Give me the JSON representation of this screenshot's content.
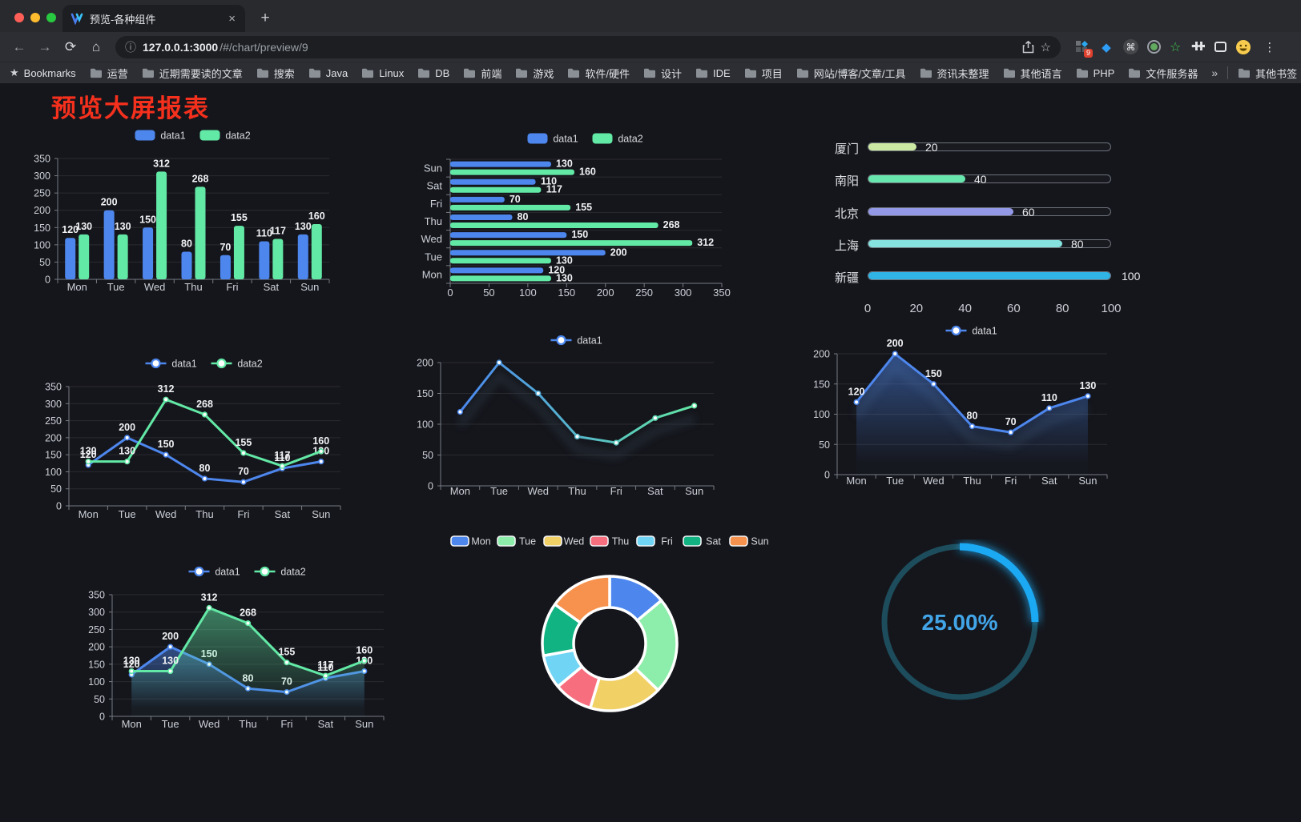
{
  "browser": {
    "tab": {
      "title": "预览-各种组件"
    },
    "url": {
      "host": "127.0.0.1:3000",
      "path": "/#/chart/preview/9"
    },
    "icons": {
      "back": "←",
      "forward": "→",
      "reload": "⟳",
      "home": "⌂",
      "info": "ⓘ",
      "star": "☆",
      "close": "×",
      "plus": "+",
      "menu": "⋮",
      "cmd": "⌘",
      "gem": "◆",
      "green_star": "☆",
      "bookmarks_star": "★",
      "overflow": "»"
    },
    "extensions": {
      "badge": "9"
    },
    "bookmarks": {
      "label": "Bookmarks",
      "folders": [
        "运营",
        "近期需要读的文章",
        "搜索",
        "Java",
        "Linux",
        "DB",
        "前端",
        "游戏",
        "软件/硬件",
        "设计",
        "IDE",
        "项目",
        "网站/博客/文章/工具",
        "资讯未整理",
        "其他语言",
        "PHP",
        "文件服务器"
      ],
      "other": "其他书签"
    }
  },
  "page": {
    "title": "预览大屏报表",
    "title_color": "#f5301d",
    "background": "#15161c"
  },
  "chart_data": [
    {
      "id": "c1",
      "type": "bar",
      "categories": [
        "Mon",
        "Tue",
        "Wed",
        "Thu",
        "Fri",
        "Sat",
        "Sun"
      ],
      "series": [
        {
          "name": "data1",
          "color": "#4d87ee",
          "values": [
            120,
            200,
            150,
            80,
            70,
            110,
            130
          ]
        },
        {
          "name": "data2",
          "color": "#63e9a6",
          "values": [
            130,
            130,
            312,
            268,
            155,
            117,
            160
          ]
        }
      ],
      "ylim": [
        0,
        350
      ],
      "yticks": [
        0,
        50,
        100,
        150,
        200,
        250,
        300,
        350
      ],
      "labels": true,
      "legend_position": "top"
    },
    {
      "id": "c2",
      "type": "bar-horizontal",
      "categories": [
        "Mon",
        "Tue",
        "Wed",
        "Thu",
        "Fri",
        "Sat",
        "Sun"
      ],
      "series": [
        {
          "name": "data1",
          "color": "#4d87ee",
          "values": [
            120,
            200,
            150,
            80,
            70,
            110,
            130
          ]
        },
        {
          "name": "data2",
          "color": "#63e9a6",
          "values": [
            130,
            130,
            312,
            268,
            155,
            117,
            160
          ]
        }
      ],
      "xlim": [
        0,
        350
      ],
      "xticks": [
        0,
        50,
        100,
        150,
        200,
        250,
        300,
        350
      ],
      "labels": true,
      "legend_position": "top"
    },
    {
      "id": "c3",
      "type": "progress-bars",
      "items": [
        {
          "label": "厦门",
          "value": 20,
          "color": "#cbe9a2"
        },
        {
          "label": "南阳",
          "value": 40,
          "color": "#67e6ad"
        },
        {
          "label": "北京",
          "value": 60,
          "color": "#9399e7"
        },
        {
          "label": "上海",
          "value": 80,
          "color": "#85e2de"
        },
        {
          "label": "新疆",
          "value": 100,
          "color": "#30b4e6"
        }
      ],
      "xlim": [
        0,
        100
      ],
      "xticks": [
        0,
        20,
        40,
        60,
        80,
        100
      ]
    },
    {
      "id": "c4",
      "type": "line",
      "categories": [
        "Mon",
        "Tue",
        "Wed",
        "Thu",
        "Fri",
        "Sat",
        "Sun"
      ],
      "series": [
        {
          "name": "data1",
          "color": "#4d87ee",
          "values": [
            120,
            200,
            150,
            80,
            70,
            110,
            130
          ]
        },
        {
          "name": "data2",
          "color": "#63e9a6",
          "values": [
            130,
            130,
            312,
            268,
            155,
            117,
            160
          ]
        }
      ],
      "ylim": [
        0,
        350
      ],
      "yticks": [
        0,
        50,
        100,
        150,
        200,
        250,
        300,
        350
      ],
      "labels": true,
      "legend_position": "top"
    },
    {
      "id": "c5",
      "type": "line",
      "categories": [
        "Mon",
        "Tue",
        "Wed",
        "Thu",
        "Fri",
        "Sat",
        "Sun"
      ],
      "series": [
        {
          "name": "data1",
          "color": "#4a87f0",
          "gradient": [
            "#4a87f0",
            "#62e7a4"
          ],
          "values": [
            120,
            200,
            150,
            80,
            70,
            110,
            130
          ]
        }
      ],
      "ylim": [
        0,
        200
      ],
      "yticks": [
        0,
        50,
        100,
        150,
        200
      ],
      "labels": false,
      "shadow": true,
      "legend_position": "top"
    },
    {
      "id": "c6",
      "type": "line",
      "categories": [
        "Mon",
        "Tue",
        "Wed",
        "Thu",
        "Fri",
        "Sat",
        "Sun"
      ],
      "series": [
        {
          "name": "data1",
          "color": "#4d87ee",
          "values": [
            120,
            200,
            150,
            80,
            70,
            110,
            130
          ],
          "area": true
        }
      ],
      "ylim": [
        0,
        200
      ],
      "yticks": [
        0,
        50,
        100,
        150,
        200
      ],
      "labels": true,
      "shadow": true,
      "legend_position": "top"
    },
    {
      "id": "c7",
      "type": "line",
      "categories": [
        "Mon",
        "Tue",
        "Wed",
        "Thu",
        "Fri",
        "Sat",
        "Sun"
      ],
      "series": [
        {
          "name": "data1",
          "color": "#4d87ee",
          "values": [
            120,
            200,
            150,
            80,
            70,
            110,
            130
          ],
          "area": true
        },
        {
          "name": "data2",
          "color": "#63e9a6",
          "values": [
            130,
            130,
            312,
            268,
            155,
            117,
            160
          ],
          "area": true
        }
      ],
      "ylim": [
        0,
        350
      ],
      "yticks": [
        0,
        50,
        100,
        150,
        200,
        250,
        300,
        350
      ],
      "labels": true,
      "legend_position": "top"
    },
    {
      "id": "c8",
      "type": "pie",
      "categories": [
        "Mon",
        "Tue",
        "Wed",
        "Thu",
        "Fri",
        "Sat",
        "Sun"
      ],
      "values": [
        120,
        200,
        150,
        80,
        70,
        110,
        130
      ],
      "colors": [
        "#4d87ee",
        "#8dedaa",
        "#f1d065",
        "#f76e7f",
        "#70d4f4",
        "#10b381",
        "#f6924d"
      ],
      "donut": true,
      "legend_position": "top"
    },
    {
      "id": "c9",
      "type": "gauge",
      "value": 25,
      "label": "25.00%",
      "color": "#1ea9f3",
      "track_color": "#1d4d5c",
      "text_color": "#42a5e8"
    }
  ]
}
